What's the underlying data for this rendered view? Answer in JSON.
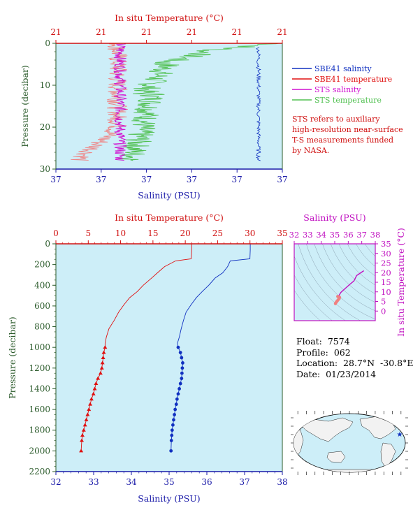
{
  "colors": {
    "plot_bg": "#cdeef8",
    "salinity_blue": "#1030c0",
    "temperature_red": "#e01010",
    "sts_salinity": "#d010d0",
    "sts_temperature": "#50c050",
    "sts_temp_pink": "#f08080",
    "axis_blue": "#1a1aa8",
    "axis_red": "#d01010",
    "axis_magenta": "#c010c0",
    "axis_green": "#2a5a2a"
  },
  "chart_data": [
    {
      "id": "near-surface",
      "type": "line",
      "xlabel_top": "In situ Temperature (°C)",
      "xlabel_bottom": "Salinity (PSU)",
      "ylabel": "Pressure (decibar)",
      "ylim": [
        30,
        0
      ],
      "top_ticks": [
        "21",
        "21",
        "21",
        "21",
        "21",
        "21"
      ],
      "bottom_ticks": [
        "37",
        "37",
        "37",
        "37",
        "37",
        "37"
      ],
      "y_ticks": [
        0,
        10,
        20,
        30
      ],
      "legend": [
        {
          "name": "SBE41 salinity",
          "color": "#1030c0"
        },
        {
          "name": "SBE41 temperature",
          "color": "#e01010"
        },
        {
          "name": "STS salinity",
          "color": "#d010d0"
        },
        {
          "name": "STS temperature",
          "color": "#50c050"
        }
      ],
      "note": [
        "STS refers to auxiliary",
        "high-resolution near-surface",
        "T-S measurements funded",
        "by NASA."
      ]
    },
    {
      "id": "full-profile",
      "type": "line",
      "xlabel_top": "In situ Temperature (°C)",
      "xlabel_bottom": "Salinity (PSU)",
      "ylabel": "Pressure (decibar)",
      "temperature_range": [
        0,
        35
      ],
      "salinity_range": [
        32,
        38
      ],
      "ylim": [
        2200,
        0
      ],
      "temperature_ticks": [
        0,
        5,
        10,
        15,
        20,
        25,
        30,
        35
      ],
      "salinity_ticks": [
        32,
        33,
        34,
        35,
        36,
        37,
        38
      ],
      "y_ticks": [
        0,
        200,
        400,
        600,
        800,
        1000,
        1200,
        1400,
        1600,
        1800,
        2000,
        2200
      ],
      "series": [
        {
          "name": "Temperature",
          "x": [
            21.0,
            21.0,
            20.9,
            18.5,
            16.8,
            15.7,
            14.8,
            13.5,
            12.6,
            11.4,
            10.5,
            9.7,
            9.0,
            8.2,
            7.8,
            7.6,
            7.6,
            7.4,
            7.3,
            7.2,
            7.1,
            6.9,
            6.5,
            6.2,
            6.0,
            5.8,
            5.5,
            5.3,
            5.1,
            4.9,
            4.7,
            4.5,
            4.3,
            4.1,
            4.0,
            3.9
          ],
          "y": [
            0,
            60,
            145,
            165,
            220,
            280,
            330,
            400,
            460,
            520,
            590,
            660,
            740,
            820,
            900,
            960,
            1000,
            1050,
            1100,
            1150,
            1200,
            1250,
            1300,
            1350,
            1400,
            1450,
            1500,
            1550,
            1600,
            1650,
            1700,
            1750,
            1800,
            1850,
            1900,
            2000
          ]
        },
        {
          "name": "Salinity",
          "x": [
            37.15,
            37.15,
            37.14,
            36.62,
            36.55,
            36.42,
            36.22,
            36.05,
            35.88,
            35.72,
            35.58,
            35.45,
            35.38,
            35.32,
            35.27,
            35.22,
            35.24,
            35.3,
            35.33,
            35.36,
            35.35,
            35.34,
            35.33,
            35.3,
            35.27,
            35.24,
            35.21,
            35.19,
            35.16,
            35.14,
            35.12,
            35.1,
            35.08,
            35.07,
            35.06,
            35.05
          ],
          "y": [
            0,
            60,
            145,
            165,
            220,
            280,
            330,
            400,
            460,
            520,
            590,
            660,
            740,
            820,
            900,
            960,
            1000,
            1050,
            1100,
            1150,
            1200,
            1250,
            1300,
            1350,
            1400,
            1450,
            1500,
            1550,
            1600,
            1650,
            1700,
            1750,
            1800,
            1850,
            1900,
            2000
          ]
        }
      ]
    },
    {
      "id": "ts-diagram",
      "type": "scatter",
      "xlabel_top": "Salinity (PSU)",
      "ylabel_right": "In situ Temperature (°C)",
      "xlim": [
        32,
        38
      ],
      "ylim": [
        -5,
        35
      ],
      "x_ticks": [
        32,
        33,
        34,
        35,
        36,
        37,
        38
      ],
      "y_ticks": [
        0,
        5,
        10,
        15,
        20,
        25,
        30,
        35
      ],
      "series": [
        {
          "name": "TS",
          "x": [
            37.15,
            36.62,
            36.42,
            36.05,
            35.72,
            35.45,
            35.32,
            35.22,
            35.33,
            35.36,
            35.33,
            35.27,
            35.21,
            35.16,
            35.12,
            35.08,
            35.05
          ],
          "y": [
            21.0,
            18.5,
            15.7,
            13.5,
            11.4,
            9.7,
            8.2,
            7.6,
            7.3,
            7.1,
            6.5,
            6.0,
            5.5,
            5.1,
            4.7,
            4.3,
            3.9
          ]
        }
      ]
    }
  ],
  "float_info": {
    "float_label": "Float:",
    "float_value": "7574",
    "profile_label": "Profile:",
    "profile_value": "062",
    "location_label": "Location:",
    "location_value": "28.7°N  -30.8°E",
    "date_label": "Date:",
    "date_value": "01/23/2014"
  }
}
